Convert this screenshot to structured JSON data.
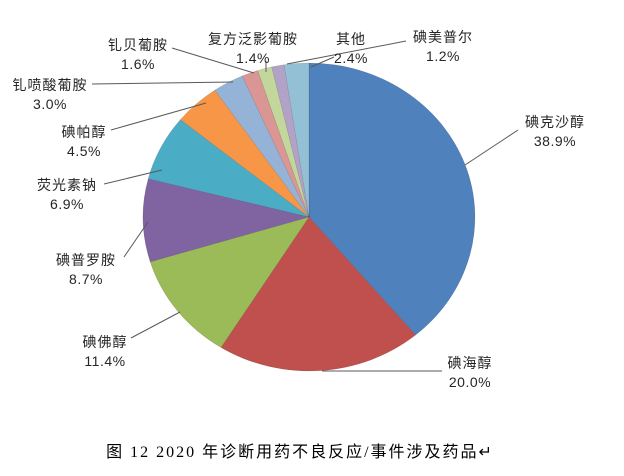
{
  "caption": "图 12  2020 年诊断用药不良反应/事件涉及药品↵",
  "chart_data": {
    "type": "pie",
    "title": "图 12  2020 年诊断用药不良反应/事件涉及药品",
    "direction": "clockwise",
    "start_angle_deg": 0,
    "legend": "none (outside end labels with leader lines)",
    "leader_line_color": "#595959",
    "label_text_color": "#262626",
    "slices": [
      {
        "label": "碘克沙醇",
        "value": 38.9,
        "pct_label": "38.9%",
        "color": "#4F81BD"
      },
      {
        "label": "碘海醇",
        "value": 20.0,
        "pct_label": "20.0%",
        "color": "#C0504D"
      },
      {
        "label": "碘佛醇",
        "value": 11.4,
        "pct_label": "11.4%",
        "color": "#9BBB59"
      },
      {
        "label": "碘普罗胺",
        "value": 8.7,
        "pct_label": "8.7%",
        "color": "#8064A2"
      },
      {
        "label": "荧光素钠",
        "value": 6.9,
        "pct_label": "6.9%",
        "color": "#4BACC6"
      },
      {
        "label": "碘帕醇",
        "value": 4.5,
        "pct_label": "4.5%",
        "color": "#F79646"
      },
      {
        "label": "钆喷酸葡胺",
        "value": 3.0,
        "pct_label": "3.0%",
        "color": "#95B3D7"
      },
      {
        "label": "钆贝葡胺",
        "value": 1.6,
        "pct_label": "1.6%",
        "color": "#D99694"
      },
      {
        "label": "复方泛影葡胺",
        "value": 1.4,
        "pct_label": "1.4%",
        "color": "#C3D69B"
      },
      {
        "label": "碘美普尔",
        "value": 1.2,
        "pct_label": "1.2%",
        "color": "#B3A2C7"
      },
      {
        "label": "其他",
        "value": 2.4,
        "pct_label": "2.4%",
        "color": "#93C0D4"
      }
    ]
  }
}
